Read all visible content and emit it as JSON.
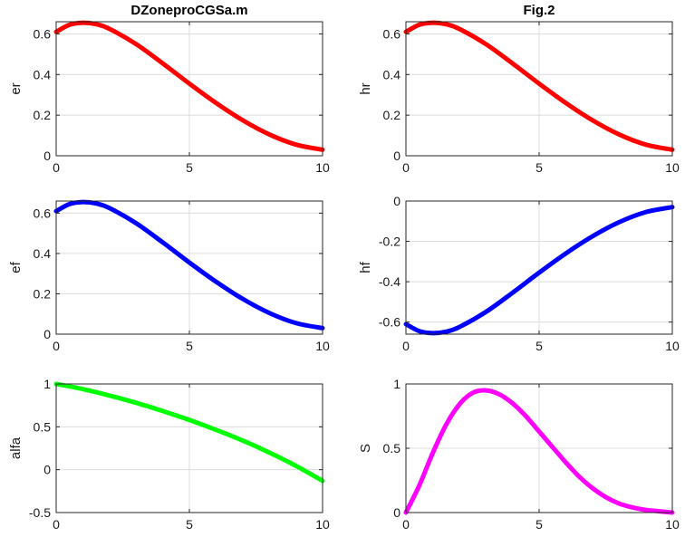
{
  "chart_data": [
    {
      "type": "line",
      "title": "DZoneproCGSa.m",
      "ylabel": "er",
      "xlim": [
        0,
        10
      ],
      "ylim": [
        0,
        0.66
      ],
      "xticks": [
        "0",
        "5",
        "10"
      ],
      "yticks": [
        "0",
        "0.2",
        "0.4",
        "0.6"
      ],
      "grid": true,
      "series": [
        {
          "color": "#ff0000",
          "x": [
            0,
            0.5,
            1,
            1.5,
            2,
            3,
            4,
            5,
            6,
            7,
            8,
            9,
            10
          ],
          "y": [
            0.61,
            0.645,
            0.655,
            0.648,
            0.625,
            0.55,
            0.455,
            0.355,
            0.26,
            0.175,
            0.105,
            0.055,
            0.03
          ]
        }
      ]
    },
    {
      "type": "line",
      "title": "Fig.2",
      "ylabel": "hr",
      "xlim": [
        0,
        10
      ],
      "ylim": [
        0,
        0.66
      ],
      "xticks": [
        "0",
        "5",
        "10"
      ],
      "yticks": [
        "0",
        "0.2",
        "0.4",
        "0.6"
      ],
      "grid": true,
      "series": [
        {
          "color": "#ff0000",
          "x": [
            0,
            0.5,
            1,
            1.5,
            2,
            3,
            4,
            5,
            6,
            7,
            8,
            9,
            10
          ],
          "y": [
            0.61,
            0.645,
            0.655,
            0.648,
            0.625,
            0.55,
            0.455,
            0.355,
            0.26,
            0.175,
            0.105,
            0.055,
            0.03
          ]
        }
      ]
    },
    {
      "type": "line",
      "title": "",
      "ylabel": "ef",
      "xlim": [
        0,
        10
      ],
      "ylim": [
        0,
        0.66
      ],
      "xticks": [
        "0",
        "5",
        "10"
      ],
      "yticks": [
        "0",
        "0.2",
        "0.4",
        "0.6"
      ],
      "grid": true,
      "series": [
        {
          "color": "#0000ff",
          "x": [
            0,
            0.5,
            1,
            1.5,
            2,
            3,
            4,
            5,
            6,
            7,
            8,
            9,
            10
          ],
          "y": [
            0.61,
            0.645,
            0.655,
            0.648,
            0.625,
            0.55,
            0.455,
            0.355,
            0.26,
            0.175,
            0.105,
            0.055,
            0.03
          ]
        }
      ]
    },
    {
      "type": "line",
      "title": "",
      "ylabel": "hf",
      "xlim": [
        0,
        10
      ],
      "ylim": [
        -0.66,
        0
      ],
      "xticks": [
        "0",
        "5",
        "10"
      ],
      "yticks": [
        "-0.6",
        "-0.4",
        "-0.2",
        "0"
      ],
      "grid": true,
      "series": [
        {
          "color": "#0000ff",
          "x": [
            0,
            0.5,
            1,
            1.5,
            2,
            3,
            4,
            5,
            6,
            7,
            8,
            9,
            10
          ],
          "y": [
            -0.61,
            -0.645,
            -0.655,
            -0.648,
            -0.625,
            -0.55,
            -0.455,
            -0.355,
            -0.26,
            -0.175,
            -0.105,
            -0.055,
            -0.03
          ]
        }
      ]
    },
    {
      "type": "line",
      "title": "",
      "ylabel": "alfa",
      "xlim": [
        0,
        10
      ],
      "ylim": [
        -0.5,
        1
      ],
      "xticks": [
        "0",
        "5",
        "10"
      ],
      "yticks": [
        "-0.5",
        "0",
        "0.5",
        "1"
      ],
      "grid": true,
      "series": [
        {
          "color": "#00ff00",
          "x": [
            0,
            1,
            2,
            3,
            4,
            5,
            6,
            7,
            8,
            9,
            10
          ],
          "y": [
            1.0,
            0.94,
            0.865,
            0.78,
            0.685,
            0.58,
            0.465,
            0.34,
            0.2,
            0.045,
            -0.13
          ]
        }
      ]
    },
    {
      "type": "line",
      "title": "",
      "ylabel": "S",
      "xlim": [
        0,
        10
      ],
      "ylim": [
        0,
        1
      ],
      "xticks": [
        "0",
        "5",
        "10"
      ],
      "yticks": [
        "0",
        "0.5",
        "1"
      ],
      "grid": true,
      "series": [
        {
          "color": "#ff00ff",
          "x": [
            0,
            0.5,
            1,
            1.5,
            2,
            2.5,
            3,
            3.5,
            4,
            4.5,
            5,
            5.5,
            6,
            6.5,
            7,
            7.5,
            8,
            8.5,
            9,
            9.5,
            10
          ],
          "y": [
            0.0,
            0.21,
            0.46,
            0.68,
            0.84,
            0.93,
            0.95,
            0.92,
            0.85,
            0.75,
            0.63,
            0.51,
            0.39,
            0.28,
            0.19,
            0.12,
            0.07,
            0.04,
            0.02,
            0.01,
            0.0
          ]
        }
      ]
    }
  ]
}
